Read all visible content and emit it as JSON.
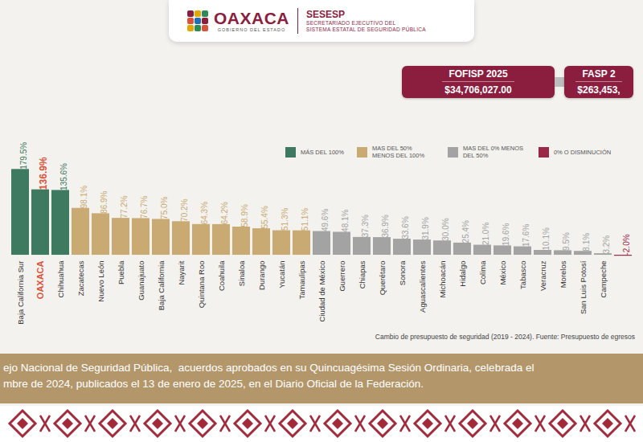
{
  "header": {
    "logo_title": "OAXACA",
    "logo_subtitle": "GOBIERNO DEL ESTADO",
    "org": "SESESP",
    "org_lines": [
      "SECRETARIADO EJECUTIVO DEL",
      "SISTEMA ESTATAL DE SEGURIDAD PÚBLICA"
    ]
  },
  "boxes": [
    {
      "title": "FOFISP 2025",
      "amount": "$34,706,027.00"
    },
    {
      "title": "FASP 2",
      "amount": "$263,453,"
    }
  ],
  "chart_data": {
    "type": "bar",
    "caption": "Cambio de presupuesto de seguridad (2019 - 2024). Fuente: Presupuesto de egresos",
    "categories": [
      "Baja California Sur",
      "OAXACA",
      "Chihuahua",
      "Zacatecas",
      "Nuevo León",
      "Puebla",
      "Guanajuato",
      "Baja California",
      "Nayarit",
      "Quintana Roo",
      "Coahuila",
      "Sinaloa",
      "Durango",
      "Yucatán",
      "Tamaulipas",
      "Ciudad de México",
      "Guerrero",
      "Chiapas",
      "Querétaro",
      "Sonora",
      "Aguascalientes",
      "Michoacán",
      "Hidalgo",
      "Colima",
      "México",
      "Tabasco",
      "Veracruz",
      "Morelos",
      "San Luis Potosí",
      "Campeche",
      null
    ],
    "series": [
      {
        "name": "MÁS DEL 100%",
        "color": "#3d7a5f",
        "values": [
          179.5,
          136.9,
          135.6,
          null,
          null,
          null,
          null,
          null,
          null,
          null,
          null,
          null,
          null,
          null,
          null,
          null,
          null,
          null,
          null,
          null,
          null,
          null,
          null,
          null,
          null,
          null,
          null,
          null,
          null,
          null,
          null
        ],
        "value_labels": [
          "179.5%",
          "136.9%",
          "135.6%",
          null,
          null,
          null,
          null,
          null,
          null,
          null,
          null,
          null,
          null,
          null,
          null,
          null,
          null,
          null,
          null,
          null,
          null,
          null,
          null,
          null,
          null,
          null,
          null,
          null,
          null,
          null,
          null
        ]
      },
      {
        "name": "MAS DEL 50% MENOS DEL 100%",
        "color": "#c9aa72",
        "values": [
          null,
          null,
          null,
          98.1,
          86.9,
          77.2,
          76.7,
          75.0,
          70.2,
          64.3,
          64.2,
          58.9,
          55.4,
          51.3,
          51.1,
          null,
          null,
          null,
          null,
          null,
          null,
          null,
          null,
          null,
          null,
          null,
          null,
          null,
          null,
          null,
          null
        ],
        "value_labels": [
          null,
          null,
          null,
          "98.1%",
          "86.9%",
          "77.2%",
          "76.7%",
          "75.0%",
          "70.2%",
          "64.3%",
          "64.2%",
          "58.9%",
          "55.4%",
          "51.3%",
          "51.1%",
          null,
          null,
          null,
          null,
          null,
          null,
          null,
          null,
          null,
          null,
          null,
          null,
          null,
          null,
          null,
          null
        ]
      },
      {
        "name": "MAS DEL 0% MENOS DEL 50%",
        "color": "#a3a3a3",
        "values": [
          null,
          null,
          null,
          null,
          null,
          null,
          null,
          null,
          null,
          null,
          null,
          null,
          null,
          null,
          null,
          49.6,
          48.1,
          37.3,
          36.9,
          33.6,
          31.9,
          30.0,
          25.4,
          21.0,
          19.6,
          17.6,
          10.1,
          9.5,
          8.1,
          3.2,
          null
        ],
        "value_labels": [
          null,
          null,
          null,
          null,
          null,
          null,
          null,
          null,
          null,
          null,
          null,
          null,
          null,
          null,
          null,
          "49.6%",
          "48.1%",
          "37.3%",
          "36.9%",
          "33.6%",
          "31.9%",
          "30.0%",
          "25.4%",
          "21.0%",
          "19.6%",
          "17.6%",
          "10.1%",
          "9.5%",
          "8.1%",
          "3.2%",
          null
        ]
      },
      {
        "name": "0% O DISMINUCIÓN",
        "color": "#9b2847",
        "values": [
          null,
          null,
          null,
          null,
          null,
          null,
          null,
          null,
          null,
          null,
          null,
          null,
          null,
          null,
          null,
          null,
          null,
          null,
          null,
          null,
          null,
          null,
          null,
          null,
          null,
          null,
          null,
          null,
          null,
          null,
          -2.0
        ],
        "value_labels": [
          null,
          null,
          null,
          null,
          null,
          null,
          null,
          null,
          null,
          null,
          null,
          null,
          null,
          null,
          null,
          null,
          null,
          null,
          null,
          null,
          null,
          null,
          null,
          null,
          null,
          null,
          null,
          null,
          null,
          null,
          "-2.0%"
        ]
      }
    ],
    "ylim": [
      -5,
      180
    ],
    "data_labels": true,
    "tick_labels": "x",
    "legend": "top-right",
    "grid": false
  },
  "footer": {
    "lines": [
      "ejo Nacional de Seguridad Pública,  acuerdos aprobados en su Quincuagésima Sesión Ordinaria, celebrada el",
      "mbre de 2024, publicados el 13 de enero de 2025, en el Diario Oficial de la Federación."
    ]
  }
}
